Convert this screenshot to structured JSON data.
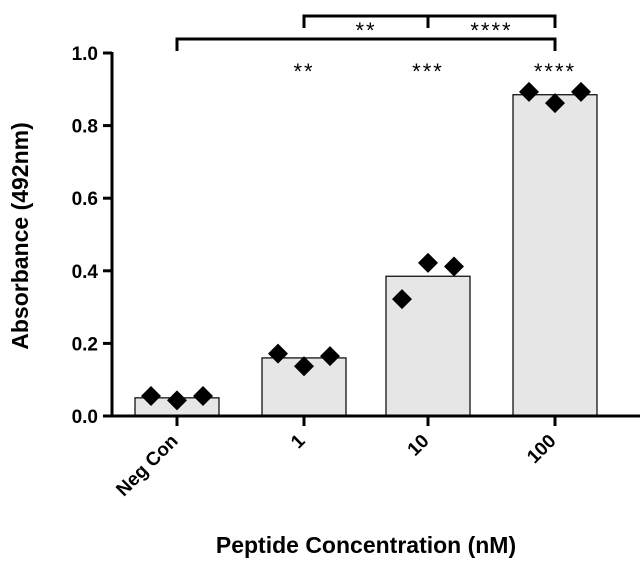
{
  "chart_data": {
    "type": "bar",
    "xlabel": "Peptide Concentration (nM)",
    "ylabel": "Absorbance (492nm)",
    "ylim": [
      0,
      1.0
    ],
    "yticks": [
      0.0,
      0.2,
      0.4,
      0.6,
      0.8,
      1.0
    ],
    "ytick_labels": [
      "0.0",
      "0.2",
      "0.4",
      "0.6",
      "0.8",
      "1.0"
    ],
    "categories": [
      "Neg Con",
      "1",
      "10",
      "100"
    ],
    "values": [
      0.05,
      0.16,
      0.385,
      0.885
    ],
    "points": [
      [
        0.055,
        0.043,
        0.055
      ],
      [
        0.172,
        0.137,
        0.165
      ],
      [
        0.322,
        0.422,
        0.412
      ],
      [
        0.893,
        0.862,
        0.893
      ]
    ],
    "bar_color": "#e6e6e6",
    "marker_color": "#000000",
    "significance_brackets": [
      {
        "from": "1",
        "to": "10",
        "label": "**"
      },
      {
        "from": "10",
        "to": "100",
        "label": "****"
      },
      {
        "from": "Neg Con",
        "to": "100",
        "label": ""
      }
    ],
    "significance_labels": [
      {
        "category": "1",
        "label": "**"
      },
      {
        "category": "10",
        "label": "***"
      },
      {
        "category": "100",
        "label": "****"
      }
    ]
  }
}
